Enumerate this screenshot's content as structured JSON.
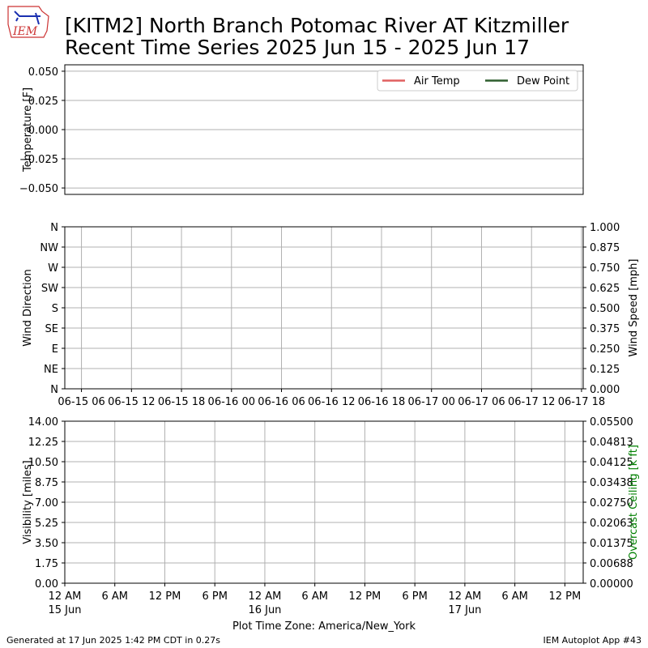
{
  "header": {
    "logo": "IEM",
    "title": "[KITM2] North Branch Potomac River  AT Kitzmiller",
    "subtitle": "Recent Time Series 2025 Jun 15 - 2025 Jun 17"
  },
  "footer": {
    "left": "Generated at 17 Jun 2025 1:42 PM CDT in 0.27s",
    "right": "IEM Autoplot App #43"
  },
  "chart_data": [
    {
      "type": "line",
      "ylabel": "Temperature [F]",
      "grid": "y",
      "legend": "upper right",
      "ylim": [
        -0.0555,
        0.0555
      ],
      "yticks": [
        {
          "value": 0.05,
          "label": "0.050"
        },
        {
          "value": 0.025,
          "label": "0.025"
        },
        {
          "value": 0,
          "label": "0.000"
        },
        {
          "value": -0.025,
          "label": "−0.025"
        },
        {
          "value": -0.05,
          "label": "−0.050"
        }
      ],
      "series": [
        {
          "name": "Air Temp",
          "color": "#e06060",
          "values": []
        },
        {
          "name": "Dew Point",
          "color": "#2e5e2e",
          "values": []
        }
      ]
    },
    {
      "type": "line",
      "ylabel": "Wind Direction",
      "y2label": "Wind Speed [mph]",
      "grid": true,
      "xlim": [
        0,
        62.2
      ],
      "xticks": [
        {
          "value": 2,
          "label": "06-15 06"
        },
        {
          "value": 8,
          "label": "06-15 12"
        },
        {
          "value": 14,
          "label": "06-15 18"
        },
        {
          "value": 20,
          "label": "06-16 00"
        },
        {
          "value": 26,
          "label": "06-16 06"
        },
        {
          "value": 32,
          "label": "06-16 12"
        },
        {
          "value": 38,
          "label": "06-16 18"
        },
        {
          "value": 44,
          "label": "06-17 00"
        },
        {
          "value": 50,
          "label": "06-17 06"
        },
        {
          "value": 56,
          "label": "06-17 12"
        },
        {
          "value": 62,
          "label": "06-17 18"
        }
      ],
      "ylim": [
        0,
        360
      ],
      "yticks": [
        {
          "value": 0,
          "label": "N"
        },
        {
          "value": 45,
          "label": "NE"
        },
        {
          "value": 90,
          "label": "E"
        },
        {
          "value": 135,
          "label": "SE"
        },
        {
          "value": 180,
          "label": "S"
        },
        {
          "value": 225,
          "label": "SW"
        },
        {
          "value": 270,
          "label": "W"
        },
        {
          "value": 315,
          "label": "NW"
        },
        {
          "value": 360,
          "label": "N"
        }
      ],
      "y2lim": [
        0,
        1
      ],
      "y2ticks": [
        {
          "value": 0,
          "label": "0.000"
        },
        {
          "value": 0.125,
          "label": "0.125"
        },
        {
          "value": 0.25,
          "label": "0.250"
        },
        {
          "value": 0.375,
          "label": "0.375"
        },
        {
          "value": 0.5,
          "label": "0.500"
        },
        {
          "value": 0.625,
          "label": "0.625"
        },
        {
          "value": 0.75,
          "label": "0.750"
        },
        {
          "value": 0.875,
          "label": "0.875"
        },
        {
          "value": 1,
          "label": "1.000"
        }
      ]
    },
    {
      "type": "line",
      "ylabel": "Visibility [miles]",
      "y2label": "Overcast Ceiling [k ft]",
      "y2color": "#008000",
      "xlabel": "Plot Time Zone: America/New_York",
      "grid": true,
      "xlim": [
        0,
        62.2
      ],
      "xticks": [
        {
          "value": 0,
          "label": "12 AM",
          "date": "15 Jun"
        },
        {
          "value": 6,
          "label": "6 AM"
        },
        {
          "value": 12,
          "label": "12 PM"
        },
        {
          "value": 18,
          "label": "6 PM"
        },
        {
          "value": 24,
          "label": "12 AM",
          "date": "16 Jun"
        },
        {
          "value": 30,
          "label": "6 AM"
        },
        {
          "value": 36,
          "label": "12 PM"
        },
        {
          "value": 42,
          "label": "6 PM"
        },
        {
          "value": 48,
          "label": "12 AM",
          "date": "17 Jun"
        },
        {
          "value": 54,
          "label": "6 AM"
        },
        {
          "value": 60,
          "label": "12 PM"
        }
      ],
      "ylim": [
        0,
        14
      ],
      "yticks": [
        {
          "value": 0,
          "label": "0.00"
        },
        {
          "value": 1.75,
          "label": "1.75"
        },
        {
          "value": 3.5,
          "label": "3.50"
        },
        {
          "value": 5.25,
          "label": "5.25"
        },
        {
          "value": 7,
          "label": "7.00"
        },
        {
          "value": 8.75,
          "label": "8.75"
        },
        {
          "value": 10.5,
          "label": "10.50"
        },
        {
          "value": 12.25,
          "label": "12.25"
        },
        {
          "value": 14,
          "label": "14.00"
        }
      ],
      "y2lim": [
        0,
        0.055
      ],
      "y2ticks": [
        {
          "value": 0,
          "label": "0.00000"
        },
        {
          "value": 0.006875,
          "label": "0.00688"
        },
        {
          "value": 0.01375,
          "label": "0.01375"
        },
        {
          "value": 0.020625,
          "label": "0.02063"
        },
        {
          "value": 0.0275,
          "label": "0.02750"
        },
        {
          "value": 0.034375,
          "label": "0.03438"
        },
        {
          "value": 0.04125,
          "label": "0.04125"
        },
        {
          "value": 0.048125,
          "label": "0.04813"
        },
        {
          "value": 0.055,
          "label": "0.05500"
        }
      ]
    }
  ]
}
